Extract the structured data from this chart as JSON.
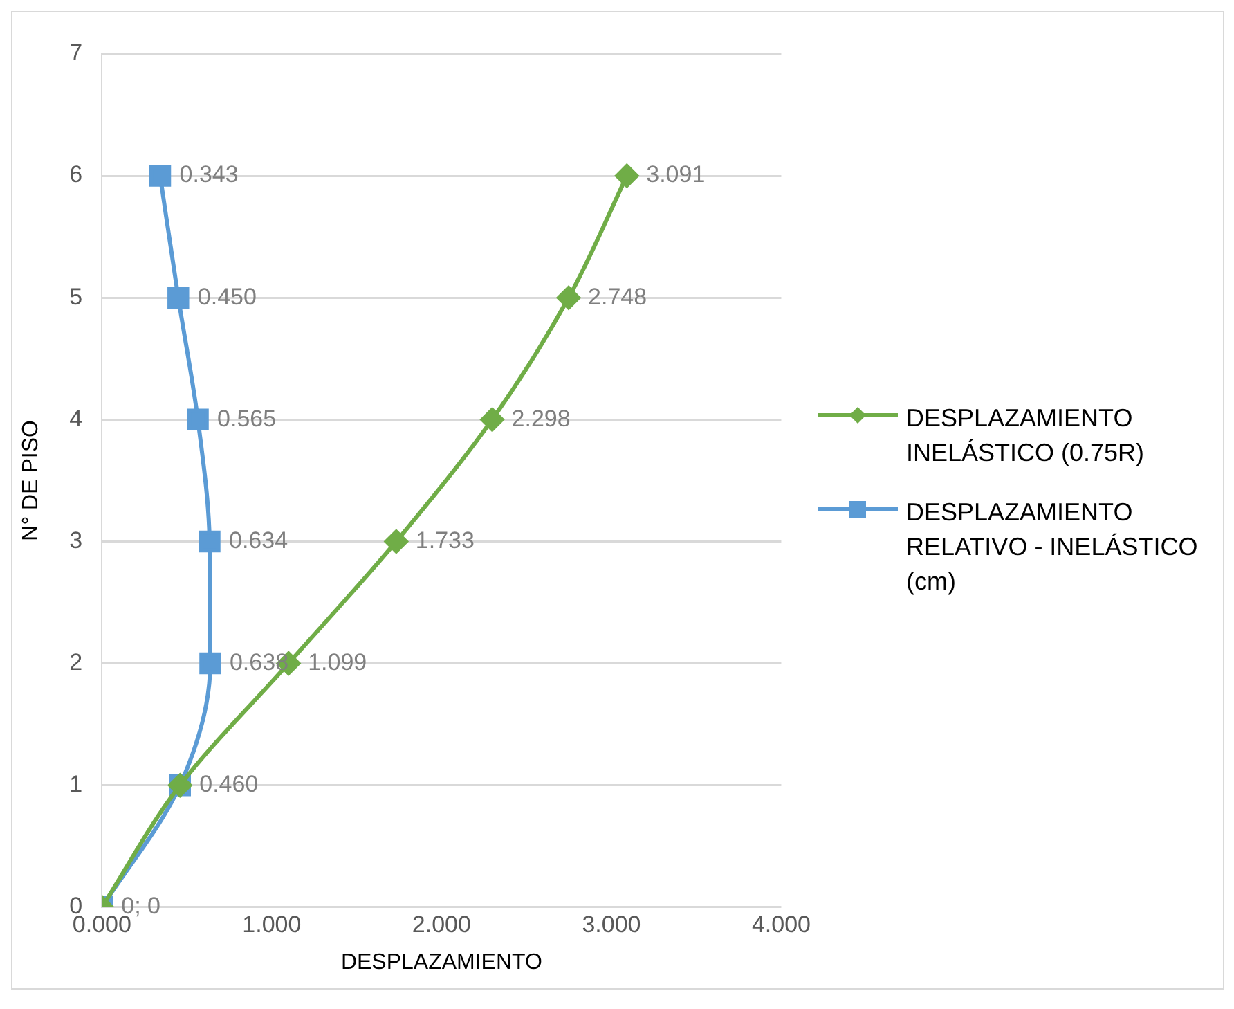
{
  "chart_data": {
    "type": "line",
    "orientation": "horizontal",
    "xlabel": "DESPLAZAMIENTO",
    "ylabel": "N° DE PISO",
    "xlim": [
      0,
      4
    ],
    "xticks": [
      {
        "value": 0,
        "label": "0.000"
      },
      {
        "value": 1,
        "label": "1.000"
      },
      {
        "value": 2,
        "label": "2.000"
      },
      {
        "value": 3,
        "label": "3.000"
      },
      {
        "value": 4,
        "label": "4.000"
      }
    ],
    "ylim": [
      0,
      7
    ],
    "yticks": [
      0,
      1,
      2,
      3,
      4,
      5,
      6,
      7
    ],
    "grid": "y",
    "legend": "right",
    "series": [
      {
        "name": "DESPLAZAMIENTO INELÁSTICO (0.75R)",
        "color": "#70ad47",
        "marker": "diamond",
        "x": [
          0,
          1,
          2,
          3,
          4,
          5,
          6
        ],
        "values": [
          0,
          0.46,
          1.099,
          1.733,
          2.298,
          2.748,
          3.091
        ],
        "value_labels": [
          null,
          null,
          "1.099",
          "1.733",
          "2.298",
          "2.748",
          "3.091"
        ]
      },
      {
        "name": "DESPLAZAMIENTO RELATIVO - INELÁSTICO (cm)",
        "color": "#5b9bd5",
        "marker": "square",
        "x": [
          0,
          1,
          2,
          3,
          4,
          5,
          6
        ],
        "values": [
          0,
          0.46,
          0.638,
          0.634,
          0.565,
          0.45,
          0.343
        ],
        "value_labels": [
          "0; 0",
          "0.460",
          "0.638",
          "0.634",
          "0.565",
          "0.450",
          "0.343"
        ]
      }
    ]
  }
}
